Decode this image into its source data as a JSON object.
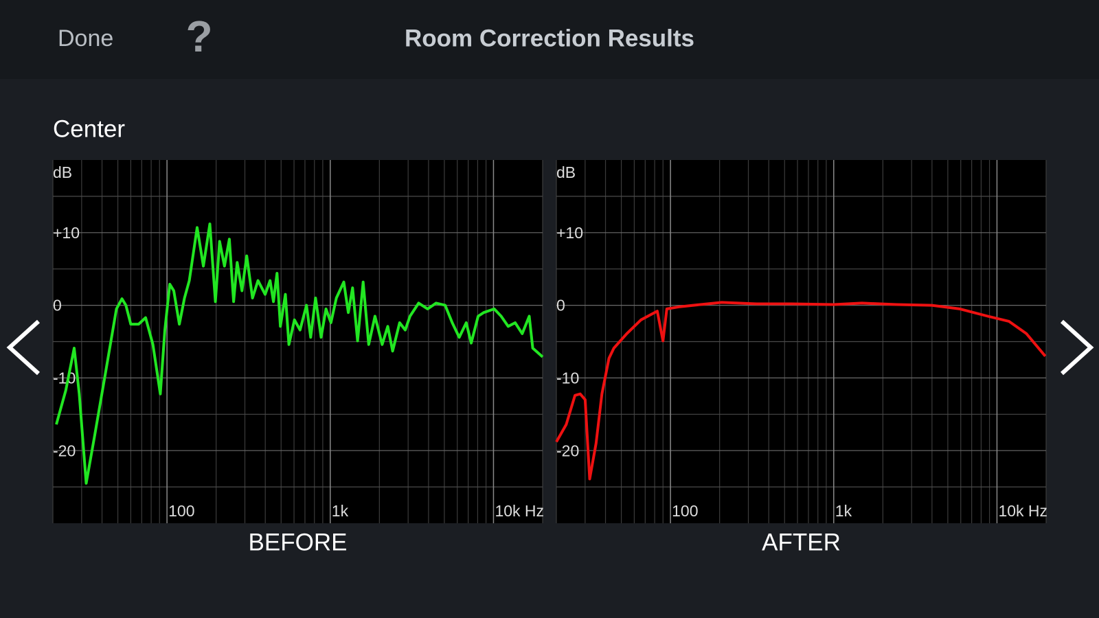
{
  "header": {
    "done": "Done",
    "help": "?",
    "title": "Room Correction Results"
  },
  "section": "Center",
  "chart_data": [
    {
      "type": "line",
      "title": "BEFORE",
      "ylabel": "dB",
      "xscale": "log",
      "grid": true,
      "color": "#22e622",
      "xlim": [
        20,
        20000
      ],
      "ylim": [
        -30,
        20
      ],
      "xticks": [
        100,
        {
          "value": 1000,
          "label": "1k"
        },
        {
          "value": 10000,
          "label": "10k Hz"
        }
      ],
      "xminor": [
        20,
        30,
        40,
        50,
        60,
        70,
        80,
        90,
        200,
        300,
        400,
        500,
        600,
        700,
        800,
        900,
        2000,
        3000,
        4000,
        5000,
        6000,
        7000,
        8000,
        9000,
        20000
      ],
      "yticks": [
        -20,
        -10,
        0,
        {
          "value": 10,
          "label": "+10"
        }
      ],
      "yminor": [
        -25,
        -15,
        -5,
        5,
        15
      ],
      "x": [
        21,
        24,
        27,
        29,
        32,
        36,
        42,
        49,
        53,
        56,
        60,
        67,
        74,
        82,
        91,
        97,
        104,
        110,
        119,
        128,
        137,
        153,
        167,
        183,
        198,
        210,
        225,
        241,
        256,
        269,
        288,
        308,
        334,
        361,
        399,
        428,
        449,
        472,
        495,
        531,
        558,
        604,
        653,
        715,
        759,
        813,
        879,
        942,
        1010,
        1090,
        1210,
        1290,
        1370,
        1470,
        1590,
        1720,
        1880,
        2080,
        2250,
        2410,
        2660,
        2880,
        3080,
        3480,
        3950,
        4450,
        5060,
        5590,
        6170,
        6810,
        7300,
        8050,
        8710,
        10100,
        11140,
        12300,
        13580,
        15000,
        16560,
        17390,
        20000
      ],
      "values": [
        -16.4,
        -11.7,
        -5.9,
        -12.2,
        -24.5,
        -18.0,
        -9.3,
        -0.5,
        0.9,
        0,
        -2.6,
        -2.6,
        -1.7,
        -5.4,
        -12.2,
        -3.4,
        2.9,
        2.0,
        -2.6,
        1.0,
        3.4,
        10.7,
        5.4,
        11.2,
        0.5,
        8.8,
        5.4,
        9.1,
        0.5,
        5.9,
        2.0,
        6.8,
        1.0,
        3.4,
        1.5,
        3.4,
        0.5,
        4.4,
        -2.9,
        1.5,
        -5.4,
        -2.0,
        -3.4,
        0,
        -4.4,
        1.0,
        -4.4,
        -0.5,
        -2.4,
        1.0,
        3.2,
        -1.0,
        2.4,
        -4.9,
        3.2,
        -5.4,
        -1.5,
        -5.4,
        -2.9,
        -6.3,
        -2.4,
        -3.4,
        -1.5,
        0.3,
        -0.5,
        0.3,
        0,
        -2.4,
        -4.4,
        -2.4,
        -5.2,
        -1.5,
        -1.0,
        -0.5,
        -1.5,
        -2.9,
        -2.4,
        -3.9,
        -1.5,
        -5.9,
        -7.1
      ]
    },
    {
      "type": "line",
      "title": "AFTER",
      "ylabel": "dB",
      "xscale": "log",
      "grid": true,
      "color": "#ee1111",
      "xlim": [
        20,
        20000
      ],
      "ylim": [
        -30,
        20
      ],
      "xticks": [
        100,
        {
          "value": 1000,
          "label": "1k"
        },
        {
          "value": 10000,
          "label": "10k Hz"
        }
      ],
      "xminor": [
        20,
        30,
        40,
        50,
        60,
        70,
        80,
        90,
        200,
        300,
        400,
        500,
        600,
        700,
        800,
        900,
        2000,
        3000,
        4000,
        5000,
        6000,
        7000,
        8000,
        9000,
        20000
      ],
      "yticks": [
        -20,
        -10,
        0,
        {
          "value": 10,
          "label": "+10"
        }
      ],
      "yminor": [
        -25,
        -15,
        -5,
        5,
        15
      ],
      "x": [
        20,
        23,
        26,
        28,
        30,
        32,
        35,
        38,
        42,
        45,
        54,
        66,
        83,
        90,
        95,
        114,
        153,
        206,
        337,
        553,
        1000,
        1490,
        2430,
        3990,
        5930,
        8790,
        11830,
        15140,
        19770
      ],
      "values": [
        -18.8,
        -16.4,
        -12.4,
        -12.2,
        -13.0,
        -23.9,
        -19.0,
        -12.2,
        -7.3,
        -5.9,
        -3.9,
        -2.0,
        -0.8,
        -4.9,
        -0.5,
        -0.2,
        0.1,
        0.4,
        0.2,
        0.2,
        0.1,
        0.3,
        0.1,
        0,
        -0.5,
        -1.5,
        -2.2,
        -3.9,
        -7.0
      ]
    }
  ]
}
